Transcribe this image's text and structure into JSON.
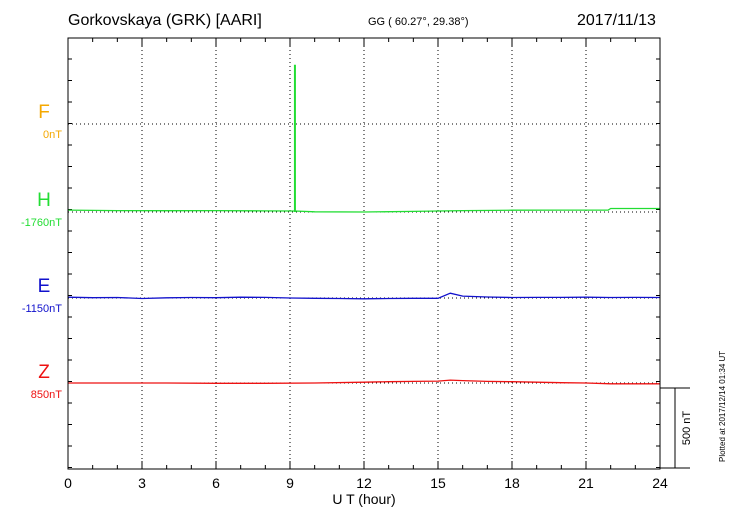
{
  "header": {
    "station": "Gorkovskaya (GRK)  [AARI]",
    "coords": "GG ( 60.27°,  29.38°)",
    "date": "2017/11/13"
  },
  "plotted_note": "Plotted at 2017/12/14 01:34 UT",
  "colors": {
    "F": "#f5a800",
    "H": "#22dd33",
    "E": "#1111cc",
    "Z": "#ee1111"
  },
  "chart_data": {
    "type": "line",
    "xlabel": "U T (hour)",
    "xlim": [
      0,
      24
    ],
    "x_ticks": [
      0,
      3,
      6,
      9,
      12,
      15,
      18,
      21,
      24
    ],
    "scale_bar": "500 nT",
    "grid": true,
    "series": [
      {
        "name": "F",
        "baseline": "0nT",
        "values": []
      },
      {
        "name": "H",
        "baseline": "-1760nT",
        "x": [
          0,
          2,
          4,
          6,
          8,
          9.2,
          10,
          12,
          14,
          15,
          16,
          18,
          20,
          21.9,
          22,
          24
        ],
        "values": [
          12,
          9,
          8,
          9,
          7,
          6,
          1,
          0,
          4,
          6,
          9,
          11,
          12,
          12,
          22,
          22
        ],
        "spike": {
          "x": 9.2,
          "value": 920
        }
      },
      {
        "name": "E",
        "baseline": "-1150nT",
        "x": [
          0,
          1,
          2,
          3,
          4,
          5,
          6,
          7,
          8,
          9,
          10,
          11,
          12,
          13,
          14,
          15,
          15.5,
          16,
          17,
          18,
          19,
          20,
          21,
          22,
          23,
          24
        ],
        "values": [
          5,
          2,
          3,
          -3,
          1,
          3,
          2,
          5,
          4,
          0,
          -2,
          -3,
          -5,
          -3,
          -2,
          -2,
          30,
          12,
          6,
          3,
          4,
          4,
          5,
          3,
          4,
          3
        ]
      },
      {
        "name": "Z",
        "baseline": "850nT",
        "x": [
          0,
          2,
          4,
          6,
          8,
          10,
          12,
          13,
          14,
          15,
          15.5,
          16,
          17,
          18,
          19,
          20,
          21,
          22,
          23,
          24
        ],
        "values": [
          0,
          0,
          0,
          -2,
          -2,
          0,
          5,
          8,
          10,
          12,
          18,
          15,
          10,
          8,
          5,
          2,
          0,
          -5,
          -5,
          -5
        ]
      }
    ]
  }
}
